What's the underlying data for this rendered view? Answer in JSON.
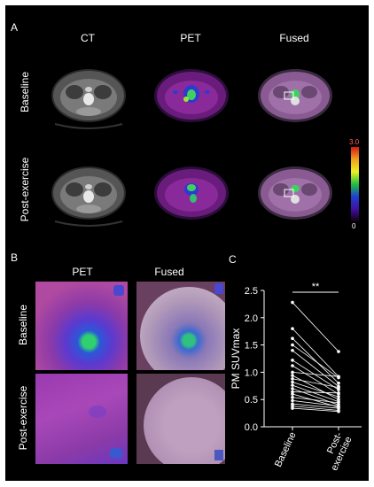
{
  "panel_a": {
    "label": "A",
    "columns": [
      "CT",
      "PET",
      "Fused"
    ],
    "rows": [
      "Baseline",
      "Post-exercise"
    ],
    "colorbar": {
      "max_label": "3.0",
      "min_label": "0"
    }
  },
  "panel_b": {
    "label": "B",
    "columns": [
      "PET",
      "Fused"
    ],
    "rows": [
      "Baseline",
      "Post-exercise"
    ]
  },
  "panel_c": {
    "label": "C"
  },
  "chart_data": {
    "type": "scatter",
    "categories": [
      "Baseline",
      "Post-\nexercise"
    ],
    "ylabel": "PM SUVmax",
    "ylim": [
      0,
      2.5
    ],
    "yticks": [
      "0.0",
      "0.5",
      "1.0",
      "1.5",
      "2.0",
      "2.5"
    ],
    "significance": "**",
    "paired": [
      [
        2.28,
        1.38
      ],
      [
        1.8,
        0.92
      ],
      [
        1.62,
        0.8
      ],
      [
        1.5,
        0.9
      ],
      [
        1.4,
        0.74
      ],
      [
        1.22,
        0.68
      ],
      [
        1.12,
        0.6
      ],
      [
        1.0,
        0.92
      ],
      [
        0.94,
        0.5
      ],
      [
        0.88,
        0.72
      ],
      [
        0.82,
        0.55
      ],
      [
        0.76,
        0.46
      ],
      [
        0.7,
        0.4
      ],
      [
        0.64,
        0.62
      ],
      [
        0.6,
        0.36
      ],
      [
        0.54,
        0.44
      ],
      [
        0.48,
        0.38
      ],
      [
        0.42,
        0.34
      ],
      [
        0.38,
        0.3
      ],
      [
        0.34,
        0.28
      ]
    ],
    "colors": {
      "line": "#ffffff",
      "point": "#ffffff"
    }
  }
}
